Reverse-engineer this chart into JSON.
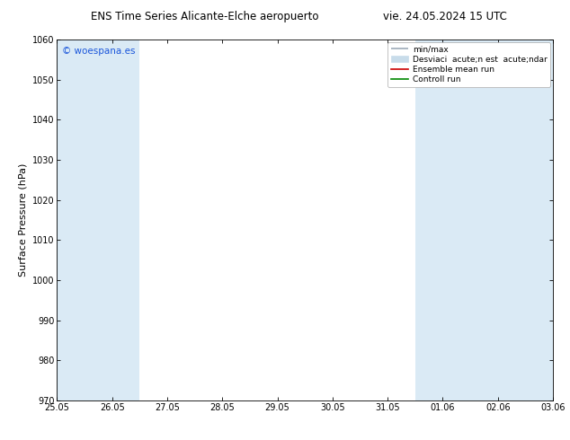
{
  "title_left": "ENS Time Series Alicante-Elche aeropuerto",
  "title_right": "vie. 24.05.2024 15 UTC",
  "ylabel": "Surface Pressure (hPa)",
  "ylim": [
    970,
    1060
  ],
  "yticks": [
    970,
    980,
    990,
    1000,
    1010,
    1020,
    1030,
    1040,
    1050,
    1060
  ],
  "xtick_labels": [
    "25.05",
    "26.05",
    "27.05",
    "28.05",
    "29.05",
    "30.05",
    "31.05",
    "01.06",
    "02.06",
    "03.06"
  ],
  "watermark": "© woespana.es",
  "watermark_color": "#1a56db",
  "bg_color": "#ffffff",
  "plot_bg_color": "#ffffff",
  "shaded_band_color": "#daeaf5",
  "legend_label_minmax": "min/max",
  "legend_label_desv": "Desviaci  acute;n est  acute;ndar",
  "legend_label_ensemble": "Ensemble mean run",
  "legend_label_control": "Controll run",
  "legend_color_minmax": "#9daab8",
  "legend_color_desv": "#c8dcea",
  "legend_color_ensemble": "#cc0000",
  "legend_color_control": "#008800",
  "title_fontsize": 8.5,
  "tick_fontsize": 7,
  "ylabel_fontsize": 8,
  "legend_fontsize": 6.5,
  "watermark_fontsize": 7.5
}
